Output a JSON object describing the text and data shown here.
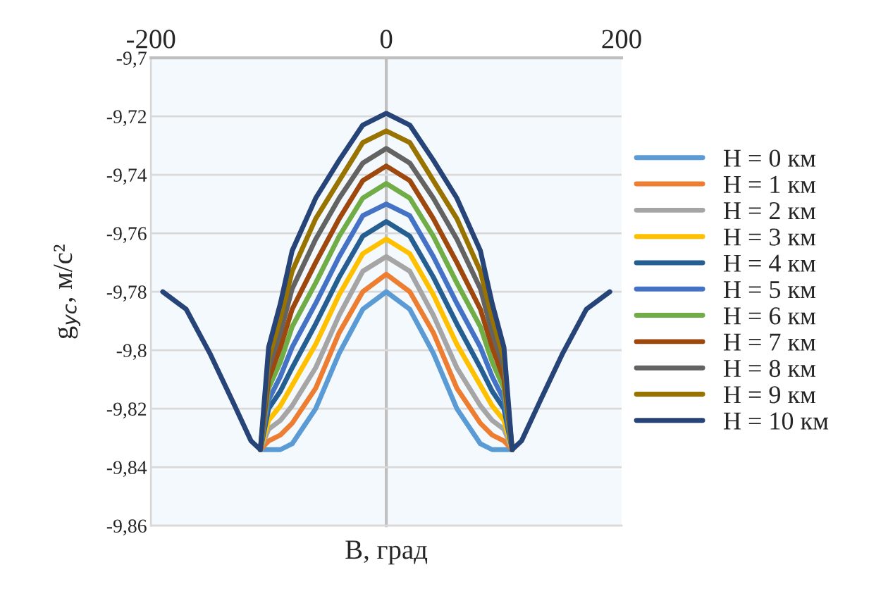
{
  "chart_data": {
    "type": "line",
    "xlabel": "B, град",
    "ylabel": "g$_{yc}$, м/с²",
    "x": [
      -107,
      -100,
      -90,
      -80,
      -60,
      -40,
      -20,
      0,
      20,
      40,
      60,
      80,
      90,
      100,
      107
    ],
    "series": [
      {
        "name": "H = 0 км",
        "color": "#5b9bd5",
        "values": [
          -9.834,
          -9.834,
          -9.834,
          -9.832,
          -9.82,
          -9.801,
          -9.786,
          -9.78,
          -9.786,
          -9.801,
          -9.82,
          -9.832,
          -9.834,
          -9.834,
          -9.834
        ]
      },
      {
        "name": "H = 1 км",
        "color": "#ed7d31",
        "values": [
          -9.834,
          -9.831,
          -9.829,
          -9.825,
          -9.813,
          -9.794,
          -9.78,
          -9.774,
          -9.78,
          -9.794,
          -9.813,
          -9.825,
          -9.829,
          -9.831,
          -9.834
        ]
      },
      {
        "name": "H = 2 км",
        "color": "#a5a5a5",
        "values": [
          -9.834,
          -9.827,
          -9.824,
          -9.819,
          -9.806,
          -9.788,
          -9.773,
          -9.768,
          -9.773,
          -9.788,
          -9.806,
          -9.819,
          -9.824,
          -9.827,
          -9.834
        ]
      },
      {
        "name": "H = 3 км",
        "color": "#ffc000",
        "values": [
          -9.834,
          -9.824,
          -9.819,
          -9.812,
          -9.798,
          -9.781,
          -9.767,
          -9.762,
          -9.767,
          -9.781,
          -9.798,
          -9.812,
          -9.819,
          -9.824,
          -9.834
        ]
      },
      {
        "name": "H = 4 км",
        "color": "#255e91",
        "values": [
          -9.834,
          -9.82,
          -9.814,
          -9.806,
          -9.791,
          -9.775,
          -9.761,
          -9.756,
          -9.761,
          -9.775,
          -9.791,
          -9.806,
          -9.814,
          -9.82,
          -9.834
        ]
      },
      {
        "name": "H = 5 км",
        "color": "#4472c4",
        "values": [
          -9.834,
          -9.817,
          -9.809,
          -9.799,
          -9.784,
          -9.768,
          -9.754,
          -9.75,
          -9.754,
          -9.768,
          -9.784,
          -9.799,
          -9.809,
          -9.817,
          -9.834
        ]
      },
      {
        "name": "H = 6 км",
        "color": "#70ad47",
        "values": [
          -9.834,
          -9.813,
          -9.804,
          -9.792,
          -9.777,
          -9.761,
          -9.748,
          -9.743,
          -9.748,
          -9.761,
          -9.777,
          -9.792,
          -9.804,
          -9.813,
          -9.834
        ]
      },
      {
        "name": "H = 7 км",
        "color": "#9e480e",
        "values": [
          -9.834,
          -9.81,
          -9.799,
          -9.786,
          -9.77,
          -9.755,
          -9.742,
          -9.737,
          -9.742,
          -9.755,
          -9.77,
          -9.786,
          -9.799,
          -9.81,
          -9.834
        ]
      },
      {
        "name": "H = 8 км",
        "color": "#636363",
        "values": [
          -9.834,
          -9.806,
          -9.794,
          -9.779,
          -9.762,
          -9.748,
          -9.736,
          -9.731,
          -9.736,
          -9.748,
          -9.762,
          -9.779,
          -9.794,
          -9.806,
          -9.834
        ]
      },
      {
        "name": "H = 9 км",
        "color": "#997300",
        "values": [
          -9.834,
          -9.803,
          -9.789,
          -9.773,
          -9.755,
          -9.742,
          -9.729,
          -9.725,
          -9.729,
          -9.742,
          -9.755,
          -9.773,
          -9.789,
          -9.803,
          -9.834
        ]
      },
      {
        "name": "H = 10 км",
        "color": "#264478",
        "x": [
          -190,
          -170,
          -150,
          -130,
          -115,
          -107,
          -100,
          -90,
          -80,
          -60,
          -40,
          -20,
          0,
          20,
          40,
          60,
          80,
          90,
          100,
          107,
          115,
          130,
          150,
          170,
          190
        ],
        "values": [
          -9.78,
          -9.786,
          -9.801,
          -9.818,
          -9.831,
          -9.834,
          -9.799,
          -9.784,
          -9.766,
          -9.748,
          -9.735,
          -9.723,
          -9.719,
          -9.723,
          -9.735,
          -9.748,
          -9.766,
          -9.784,
          -9.799,
          -9.834,
          -9.831,
          -9.818,
          -9.801,
          -9.786,
          -9.78
        ]
      }
    ],
    "xlim": [
      -200,
      200
    ],
    "xticks": [
      -200,
      0,
      200
    ],
    "ylim": [
      -9.86,
      -9.7
    ],
    "yticks": [
      {
        "value": -9.86,
        "label": "-9,86"
      },
      {
        "value": -9.84,
        "label": "-9,84"
      },
      {
        "value": -9.82,
        "label": "-9,82"
      },
      {
        "value": -9.8,
        "label": "-9,8"
      },
      {
        "value": -9.78,
        "label": "-9,78"
      },
      {
        "value": -9.76,
        "label": "-9,76"
      },
      {
        "value": -9.74,
        "label": "-9,74"
      },
      {
        "value": -9.72,
        "label": "-9,72"
      },
      {
        "value": -9.7,
        "label": "-9,7"
      }
    ],
    "grid": "y",
    "legend": "right",
    "marker": "none",
    "line_style": "solid"
  }
}
